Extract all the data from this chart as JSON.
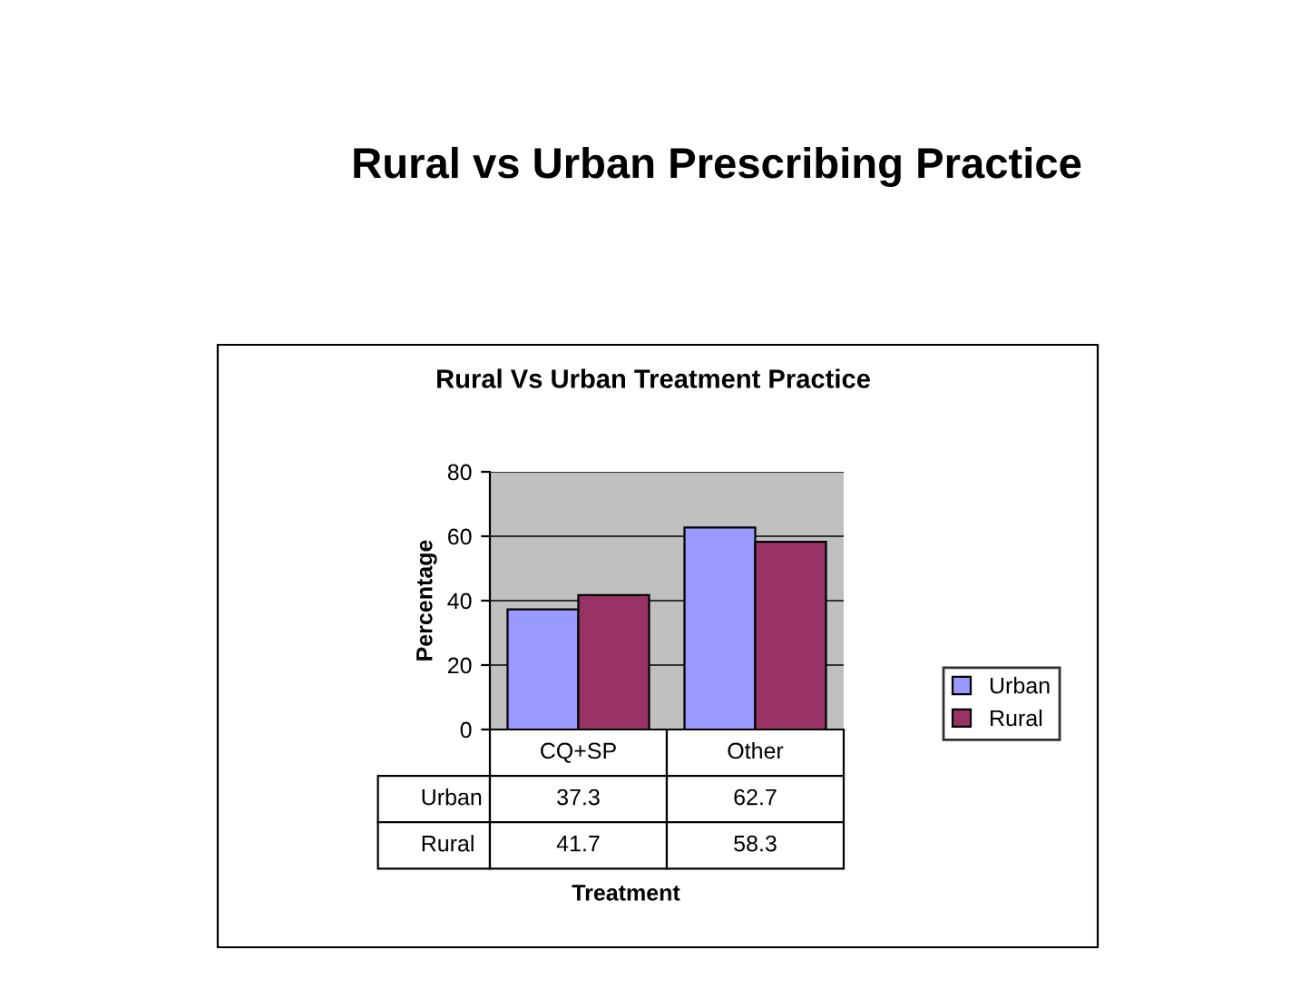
{
  "chart_data": {
    "type": "bar",
    "title": "Rural vs Urban Prescribing Practice",
    "subtitle": "Rural Vs Urban Treatment Practice",
    "annotations": [
      "Treatment"
    ],
    "ylabel": "Percentage",
    "categories": [
      "CQ+SP",
      "Other"
    ],
    "series": [
      {
        "name": "Urban",
        "color": "#9999ff",
        "values": [
          37.3,
          62.7
        ]
      },
      {
        "name": "Rural",
        "color": "#993366",
        "values": [
          41.7,
          58.3
        ]
      }
    ],
    "ylim": [
      0,
      80
    ],
    "yticks": [
      0,
      20,
      40,
      60,
      80
    ],
    "grid": "y",
    "legend": "right",
    "data_labels": true
  }
}
